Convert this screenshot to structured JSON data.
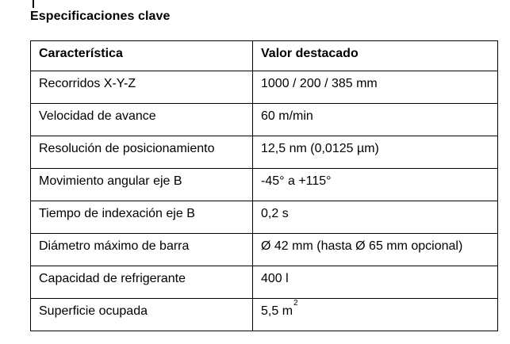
{
  "page": {
    "title": "Especificaciones clave"
  },
  "colors": {
    "text": "#000000",
    "background": "#ffffff",
    "table_border": "#000000"
  },
  "table": {
    "headers": {
      "feature": "Característica",
      "value": "Valor destacado"
    },
    "rows": [
      {
        "feature": "Recorridos X-Y-Z",
        "value": "1000 / 200 / 385 mm"
      },
      {
        "feature": "Velocidad de avance",
        "value": "60 m/min"
      },
      {
        "feature": "Resolución de posicionamiento",
        "value": "12,5 nm (0,0125 µm)"
      },
      {
        "feature": "Movimiento angular eje B",
        "value": "-45° a +115°"
      },
      {
        "feature": "Tiempo de indexación eje B",
        "value": "0,2 s"
      },
      {
        "feature": "Diámetro máximo de barra",
        "value": "Ø 42 mm (hasta Ø 65 mm opcional)"
      },
      {
        "feature": "Capacidad de refrigerante",
        "value": "400 l"
      },
      {
        "feature": "Superficie ocupada",
        "value": "5,5 m",
        "value_sup": "2"
      }
    ]
  }
}
